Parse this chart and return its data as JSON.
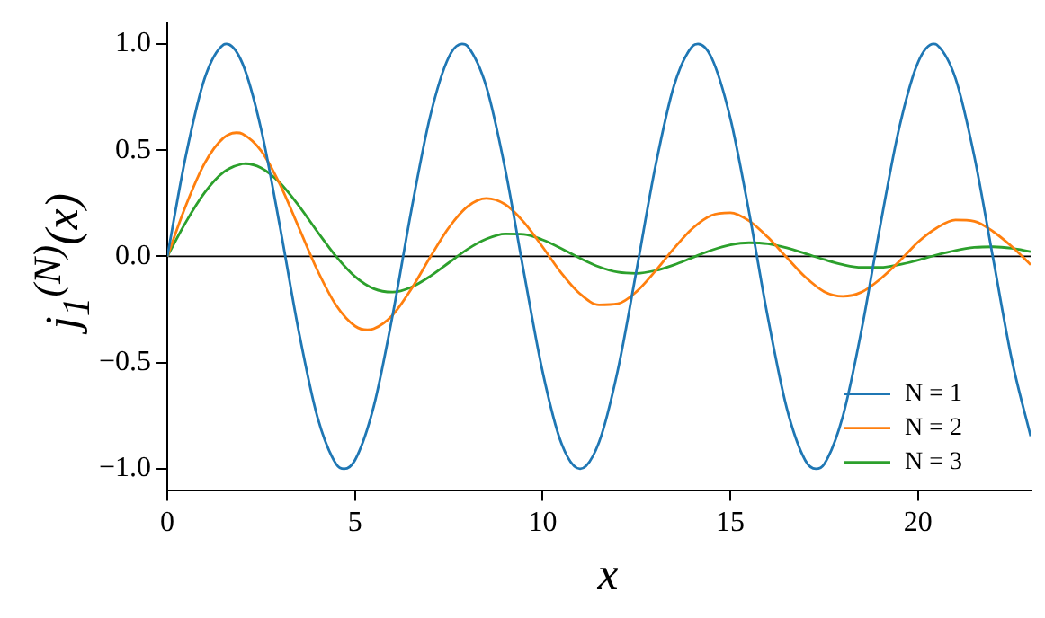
{
  "chart_data": {
    "type": "line",
    "xlabel": "x",
    "ylabel": "j$_{1}$$^{(N)}$(x)",
    "xlim": [
      0,
      23
    ],
    "ylim": [
      -1.1,
      1.1
    ],
    "xticks": [
      0,
      5,
      10,
      15,
      20
    ],
    "yticks": [
      {
        "value": -1,
        "label": "−1.0"
      },
      {
        "value": -0.5,
        "label": "−0.5"
      },
      {
        "value": 0,
        "label": "0.0"
      },
      {
        "value": 0.5,
        "label": "0.5"
      },
      {
        "value": 1,
        "label": "1.0"
      }
    ],
    "grid": false,
    "legend": "bottom right",
    "marker": "none",
    "line_style": "solid",
    "ref_lines": [
      {
        "axis": "y",
        "value": 0,
        "color": "#000000"
      }
    ],
    "series": [
      {
        "name": "N = 1",
        "color": "#1f77b4",
        "x": [
          0,
          0.5,
          1,
          1.5,
          1.571,
          2,
          2.5,
          3,
          3.5,
          4,
          4.5,
          4.712,
          5,
          5.5,
          6,
          6.5,
          7,
          7.5,
          7.854,
          8,
          8.5,
          9,
          9.5,
          10,
          10.5,
          10.996,
          11,
          11.5,
          12,
          12.5,
          13,
          13.5,
          14,
          14.137,
          14.5,
          15,
          15.5,
          16,
          16.5,
          17,
          17.279,
          17.5,
          18,
          18.5,
          19,
          19.5,
          20,
          20.42,
          20.5,
          21,
          21.5,
          22,
          22.5,
          23
        ],
        "values": [
          0,
          0.479,
          0.841,
          0.997,
          1,
          0.909,
          0.598,
          0.141,
          -0.351,
          -0.757,
          -0.978,
          -1,
          -0.959,
          -0.706,
          -0.279,
          0.215,
          0.657,
          0.938,
          1,
          0.989,
          0.798,
          0.412,
          -0.075,
          -0.544,
          -0.88,
          -1,
          -1,
          -0.875,
          -0.537,
          -0.066,
          0.42,
          0.804,
          0.991,
          1,
          0.935,
          0.65,
          0.207,
          -0.288,
          -0.712,
          -0.961,
          -1,
          -0.978,
          -0.751,
          -0.342,
          0.15,
          0.605,
          0.913,
          1,
          0.996,
          0.837,
          0.471,
          -0.009,
          -0.487,
          -0.846
        ]
      },
      {
        "name": "N = 2",
        "color": "#ff7f0e",
        "x": [
          0,
          0.5,
          1,
          1.5,
          1.84,
          2,
          2.5,
          3,
          3.5,
          4,
          4.5,
          5,
          5.33,
          5.5,
          6,
          6.5,
          7,
          7.5,
          8,
          8.5,
          9,
          9.5,
          10,
          10.5,
          11,
          11.5,
          12,
          12.5,
          13,
          13.5,
          14,
          14.5,
          15,
          15.5,
          16,
          16.5,
          17,
          17.5,
          18,
          18.5,
          19,
          19.5,
          20,
          20.5,
          21,
          21.5,
          22,
          22.5,
          23
        ],
        "values": [
          0,
          0.242,
          0.44,
          0.558,
          0.582,
          0.577,
          0.497,
          0.339,
          0.137,
          -0.066,
          -0.231,
          -0.328,
          -0.346,
          -0.341,
          -0.277,
          -0.154,
          -0.005,
          0.135,
          0.235,
          0.273,
          0.245,
          0.161,
          0.044,
          -0.079,
          -0.177,
          -0.228,
          -0.223,
          -0.166,
          -0.07,
          0.038,
          0.133,
          0.193,
          0.205,
          0.167,
          0.09,
          -0.005,
          -0.098,
          -0.166,
          -0.188,
          -0.168,
          -0.106,
          -0.024,
          0.067,
          0.134,
          0.171,
          0.165,
          0.117,
          0.046,
          -0.039
        ]
      },
      {
        "name": "N = 3",
        "color": "#2ca02c",
        "x": [
          0,
          0.5,
          1,
          1.5,
          2,
          2.08,
          2.5,
          3,
          3.5,
          4,
          4.5,
          5,
          5.5,
          6,
          6.5,
          7,
          7.5,
          8,
          8.5,
          9,
          9.5,
          10,
          10.5,
          11,
          11.5,
          12,
          12.5,
          13,
          13.5,
          14,
          14.5,
          15,
          15.5,
          16,
          16.5,
          17,
          17.5,
          18,
          18.5,
          19,
          19.5,
          20,
          20.5,
          21,
          21.5,
          22,
          22.5,
          23
        ],
        "values": [
          0,
          0.163,
          0.301,
          0.396,
          0.435,
          0.436,
          0.416,
          0.346,
          0.239,
          0.116,
          -0.001,
          -0.095,
          -0.152,
          -0.168,
          -0.145,
          -0.094,
          -0.03,
          0.034,
          0.082,
          0.106,
          0.104,
          0.078,
          0.037,
          -0.009,
          -0.049,
          -0.074,
          -0.08,
          -0.067,
          -0.04,
          -0.005,
          0.029,
          0.054,
          0.064,
          0.059,
          0.04,
          0.013,
          -0.015,
          -0.039,
          -0.052,
          -0.052,
          -0.039,
          -0.018,
          0.007,
          0.028,
          0.042,
          0.045,
          0.038,
          0.022
        ]
      }
    ]
  }
}
